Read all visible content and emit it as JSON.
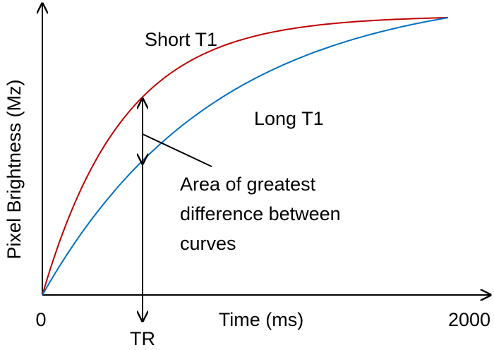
{
  "axes": {
    "y_label": "Pixel Brightness (Mz)",
    "x_label": "Time (ms)",
    "x_start": 0,
    "x_end": 2000
  },
  "curves": [
    {
      "label": "Short T1"
    },
    {
      "label": "Long T1"
    }
  ],
  "annotations": {
    "marker": "TR",
    "note_lines": [
      "Area of greatest",
      "difference between",
      "curves"
    ]
  }
}
